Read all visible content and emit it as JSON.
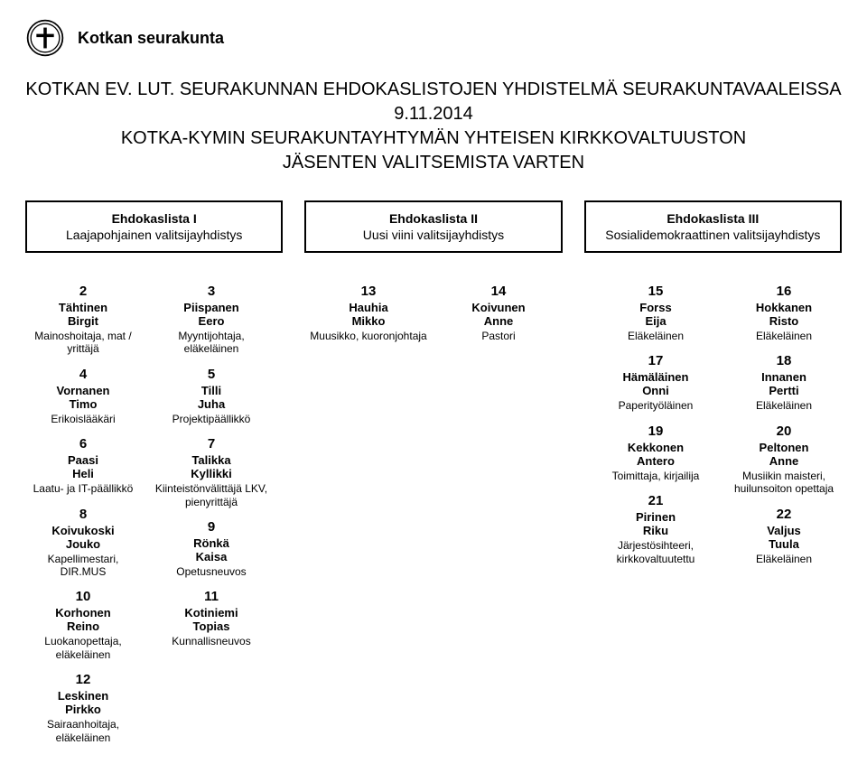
{
  "org": {
    "name": "Kotkan seurakunta"
  },
  "title": {
    "line1": "KOTKAN EV. LUT. SEURAKUNNAN EHDOKASLISTOJEN YHDISTELMÄ SEURAKUNTAVAALEISSA",
    "line2": "9.11.2014",
    "line3": "KOTKA-KYMIN SEURAKUNTAYHTYMÄN YHTEISEN KIRKKOVALTUUSTON",
    "line4": "JÄSENTEN VALITSEMISTA VARTEN"
  },
  "lists": [
    {
      "title": "Ehdokaslista I",
      "sub": "Laajapohjainen valitsijayhdistys"
    },
    {
      "title": "Ehdokaslista II",
      "sub": "Uusi viini valitsijayhdistys"
    },
    {
      "title": "Ehdokaslista III",
      "sub": "Sosialidemokraattinen valitsijayhdistys"
    }
  ],
  "group1": {
    "colA": [
      {
        "n": "2",
        "ln": "Tähtinen",
        "fn": "Birgit",
        "prof": "Mainoshoitaja, mat / yrittäjä"
      },
      {
        "n": "4",
        "ln": "Vornanen",
        "fn": "Timo",
        "prof": "Erikoislääkäri"
      },
      {
        "n": "6",
        "ln": "Paasi",
        "fn": "Heli",
        "prof": "Laatu- ja IT-päällikkö"
      },
      {
        "n": "8",
        "ln": "Koivukoski",
        "fn": "Jouko",
        "prof": "Kapellimestari, DIR.MUS"
      },
      {
        "n": "10",
        "ln": "Korhonen",
        "fn": "Reino",
        "prof": "Luokanopettaja, eläkeläinen"
      },
      {
        "n": "12",
        "ln": "Leskinen",
        "fn": "Pirkko",
        "prof": "Sairaanhoitaja, eläkeläinen"
      }
    ],
    "colB": [
      {
        "n": "3",
        "ln": "Piispanen",
        "fn": "Eero",
        "prof": "Myyntijohtaja, eläkeläinen"
      },
      {
        "n": "5",
        "ln": "Tilli",
        "fn": "Juha",
        "prof": "Projektipäällikkö"
      },
      {
        "n": "7",
        "ln": "Talikka",
        "fn": "Kyllikki",
        "prof": "Kiinteistönvälittäjä LKV, pienyrittäjä"
      },
      {
        "n": "9",
        "ln": "Rönkä",
        "fn": "Kaisa",
        "prof": "Opetusneuvos"
      },
      {
        "n": "11",
        "ln": "Kotiniemi",
        "fn": "Topias",
        "prof": "Kunnallisneuvos"
      }
    ]
  },
  "group2": {
    "colA": [
      {
        "n": "13",
        "ln": "Hauhia",
        "fn": "Mikko",
        "prof": "Muusikko, kuoronjohtaja"
      }
    ],
    "colB": [
      {
        "n": "14",
        "ln": "Koivunen",
        "fn": "Anne",
        "prof": "Pastori"
      }
    ]
  },
  "group3": {
    "colA": [
      {
        "n": "15",
        "ln": "Forss",
        "fn": "Eija",
        "prof": "Eläkeläinen"
      },
      {
        "n": "17",
        "ln": "Hämäläinen",
        "fn": "Onni",
        "prof": "Paperityöläinen"
      },
      {
        "n": "19",
        "ln": "Kekkonen",
        "fn": "Antero",
        "prof": "Toimittaja, kirjailija"
      },
      {
        "n": "21",
        "ln": "Pirinen",
        "fn": "Riku",
        "prof": "Järjestösihteeri, kirkkovaltuutettu"
      }
    ],
    "colB": [
      {
        "n": "16",
        "ln": "Hokkanen",
        "fn": "Risto",
        "prof": "Eläkeläinen"
      },
      {
        "n": "18",
        "ln": "Innanen",
        "fn": "Pertti",
        "prof": "Eläkeläinen"
      },
      {
        "n": "20",
        "ln": "Peltonen",
        "fn": "Anne",
        "prof": "Musiikin maisteri, huilunsoiton opettaja"
      },
      {
        "n": "22",
        "ln": "Valjus",
        "fn": "Tuula",
        "prof": "Eläkeläinen"
      }
    ]
  }
}
